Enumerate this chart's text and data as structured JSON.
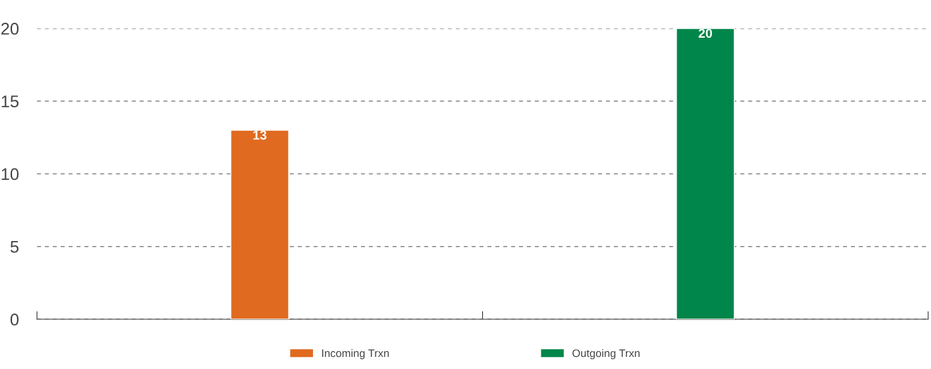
{
  "chart_data": {
    "type": "bar",
    "categories": [
      null,
      null
    ],
    "series": [
      {
        "name": "Incoming Trxn",
        "color": "#e06a20",
        "values": [
          13,
          null
        ]
      },
      {
        "name": "Outgoing Trxn",
        "color": "#00864a",
        "values": [
          null,
          20
        ]
      }
    ],
    "ylim": [
      0,
      20
    ],
    "yticks": [
      0,
      5,
      10,
      15,
      20
    ],
    "grid": "y",
    "legend": "bottom",
    "data_labels": true
  }
}
